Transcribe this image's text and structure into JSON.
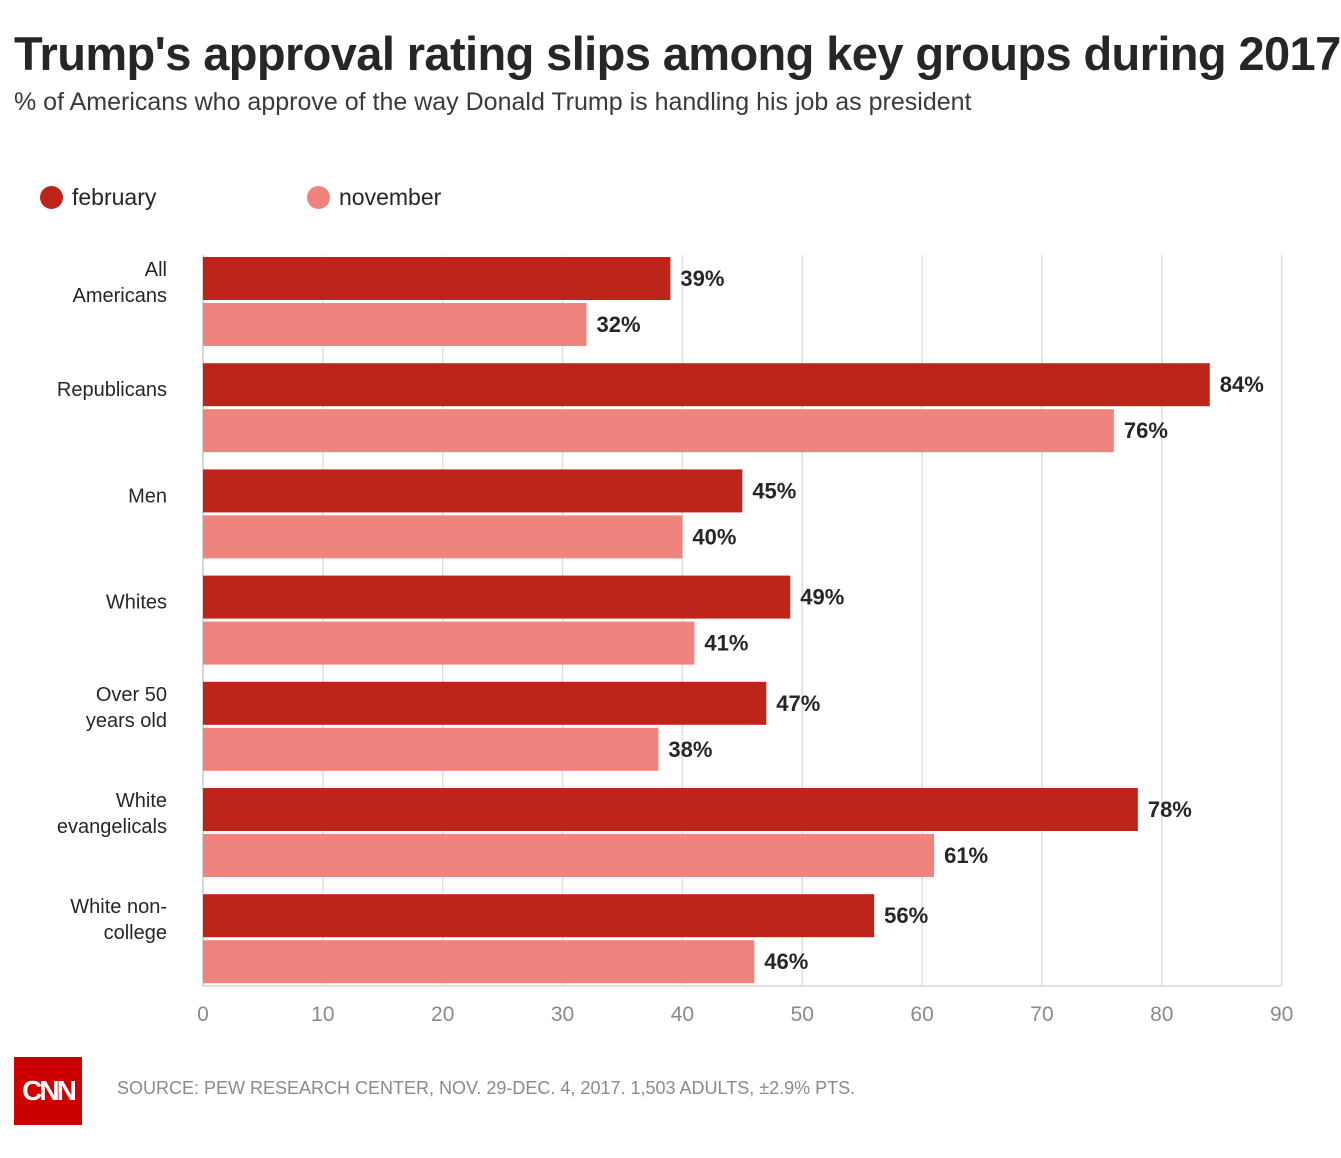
{
  "chart_data": {
    "type": "bar",
    "orientation": "horizontal",
    "title": "Trump's approval rating slips among key groups during 2017",
    "subtitle": "% of Americans who approve of the way Donald Trump is handling his job as president",
    "categories": [
      [
        "All",
        "Americans"
      ],
      [
        "Republicans"
      ],
      [
        "Men"
      ],
      [
        "Whites"
      ],
      [
        "Over 50",
        "years old"
      ],
      [
        "White",
        "evangelicals"
      ],
      [
        "White non-",
        "college"
      ]
    ],
    "series": [
      {
        "name": "february",
        "color": "#bd241a",
        "values": [
          39,
          84,
          45,
          49,
          47,
          78,
          56
        ],
        "labels": [
          "39%",
          "84%",
          "45%",
          "49%",
          "47%",
          "78%",
          "56%"
        ]
      },
      {
        "name": "november",
        "color": "#ef837d",
        "values": [
          32,
          76,
          40,
          41,
          38,
          61,
          46
        ],
        "labels": [
          "32%",
          "76%",
          "40%",
          "41%",
          "38%",
          "61%",
          "46%"
        ]
      }
    ],
    "xlim": [
      0,
      90
    ],
    "xticks": [
      "0",
      "10",
      "20",
      "30",
      "40",
      "50",
      "60",
      "70",
      "80",
      "90"
    ],
    "grid": true,
    "legend_position": "top-left"
  },
  "footer": {
    "logo_text": "CNN",
    "source": "SOURCE: PEW RESEARCH CENTER, NOV. 29-DEC. 4, 2017. 1,503 ADULTS, ±2.9% PTS."
  }
}
